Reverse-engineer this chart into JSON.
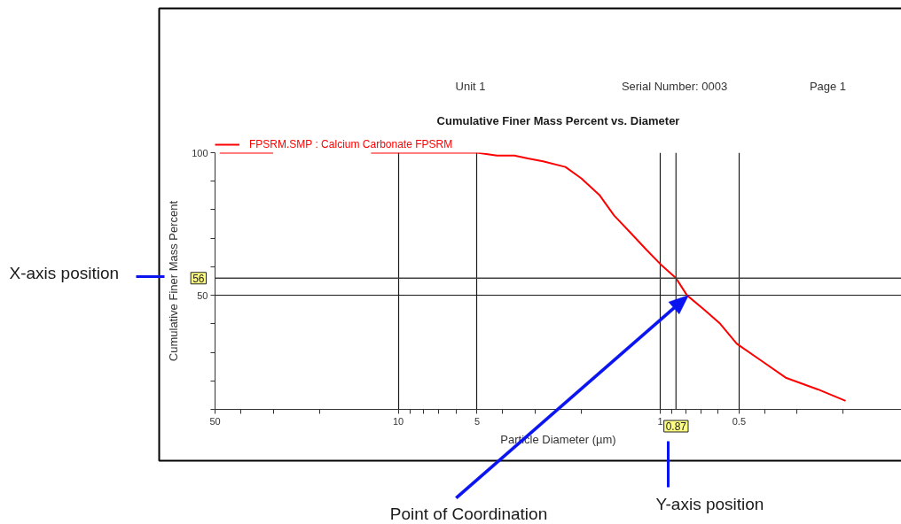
{
  "chart_data": {
    "type": "line",
    "title": "Cumulative Finer Mass Percent vs. Diameter",
    "xlabel": "Particle Diameter (µm)",
    "ylabel": "Cumulative Finer Mass Percent",
    "log": "x",
    "xlim": [
      50,
      0.12
    ],
    "xticks": [
      50,
      {
        "value": 40,
        "label": null
      },
      {
        "value": 30,
        "label": null
      },
      {
        "value": 20,
        "label": null
      },
      10,
      {
        "value": 9,
        "label": null
      },
      {
        "value": 8,
        "label": null
      },
      {
        "value": 7,
        "label": null
      },
      {
        "value": 6,
        "label": null
      },
      5,
      {
        "value": 4,
        "label": null
      },
      {
        "value": 3,
        "label": null
      },
      {
        "value": 2,
        "label": null
      },
      1,
      {
        "value": 0.9,
        "label": null
      },
      {
        "value": 0.8,
        "label": null
      },
      {
        "value": 0.7,
        "label": null
      },
      {
        "value": 0.6,
        "label": null
      },
      0.5,
      {
        "value": 0.4,
        "label": null
      },
      {
        "value": 0.3,
        "label": null
      },
      {
        "value": 0.2,
        "label": null
      }
    ],
    "ylim": [
      10,
      100
    ],
    "yticks": [
      {
        "value": 10,
        "label": null
      },
      {
        "value": 20,
        "label": null
      },
      {
        "value": 30,
        "label": null
      },
      {
        "value": 40,
        "label": null
      },
      50,
      {
        "value": 60,
        "label": null
      },
      {
        "value": 70,
        "label": null
      },
      {
        "value": 80,
        "label": null
      },
      {
        "value": 90,
        "label": null
      },
      100
    ],
    "grid": true,
    "legend": "top left",
    "series": [
      {
        "name": "FPSRM.SMP : Calcium Carbonate FPSRM",
        "color": "#ff0000",
        "x": [
          48,
          30,
          20,
          12.7,
          10,
          8,
          6,
          5,
          4.2,
          3.6,
          3.2,
          2.8,
          2.3,
          2.0,
          1.7,
          1.5,
          1.3,
          1.13,
          1.0,
          0.87,
          0.79,
          0.68,
          0.59,
          0.51,
          0.41,
          0.33,
          0.25,
          0.196
        ],
        "values": [
          100,
          100,
          null,
          100,
          100,
          100,
          100,
          100,
          99,
          99,
          98,
          97,
          95,
          91,
          85,
          78,
          72,
          66,
          61,
          56,
          50,
          45,
          40,
          33,
          27,
          21,
          17,
          13
        ]
      }
    ],
    "ref_lines": [
      {
        "axis": "y",
        "value": 56,
        "label": "56",
        "color": "#404040"
      },
      {
        "axis": "x",
        "value": 0.87,
        "label": "0.87",
        "color": "#404040"
      }
    ],
    "annotations": [
      "Unit 1",
      "Serial Number: 0003",
      "Page 1",
      "X-axis position",
      "Point of Coordination",
      "Y-axis position"
    ]
  }
}
